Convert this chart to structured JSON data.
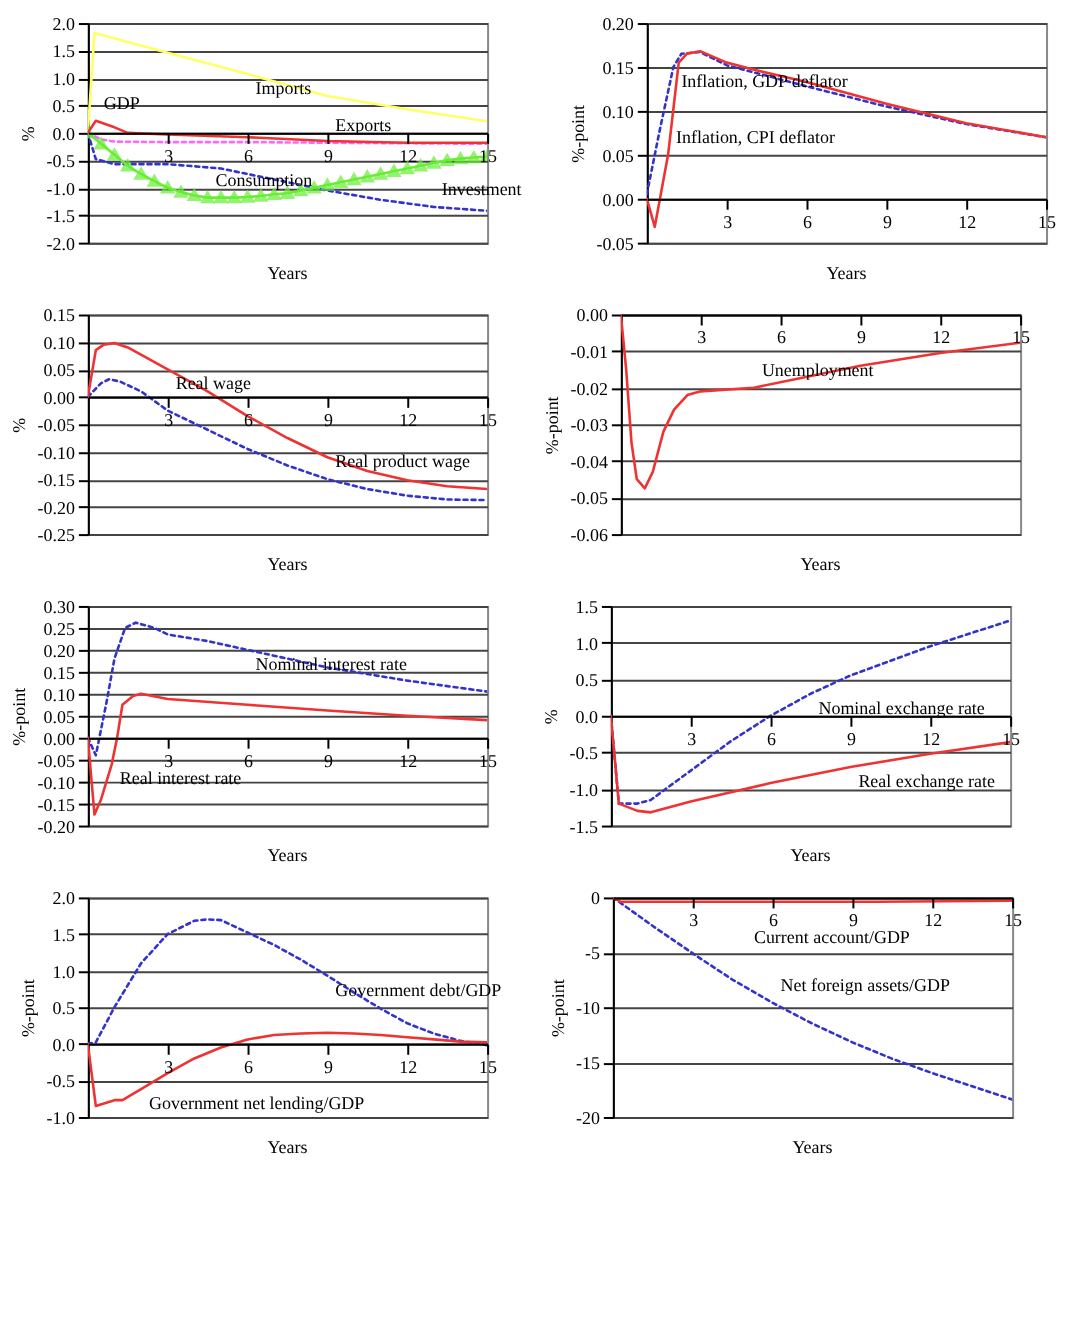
{
  "chart_data": [
    {
      "type": "line",
      "xlabel": "Years",
      "ylabel": "%",
      "xlim": [
        0,
        15
      ],
      "xticks": [
        3,
        6,
        9,
        12,
        15
      ],
      "ylim": [
        -2,
        2
      ],
      "grid": "y",
      "yticks": [
        {
          "value": -2,
          "label": "-2.0"
        },
        {
          "value": -1.5,
          "label": "-1.5"
        },
        {
          "value": -1,
          "label": "-1.0"
        },
        {
          "value": -0.5,
          "label": "-0.5"
        },
        {
          "value": 0,
          "label": "0.0"
        },
        {
          "value": 0.5,
          "label": "0.5"
        },
        {
          "value": 1,
          "label": "1.0"
        },
        {
          "value": 1.5,
          "label": "1.5"
        },
        {
          "value": 2,
          "label": "2.0"
        }
      ],
      "series": [
        {
          "color": "#ffff66",
          "line_style": "solid",
          "x": [
            0,
            0.25,
            3,
            6,
            9,
            12,
            15
          ],
          "values": [
            0,
            1.82,
            1.46,
            1.07,
            0.67,
            0.43,
            0.21
          ]
        },
        {
          "color": "#ff66ff",
          "line_style": "dotted",
          "x": [
            0,
            0.5,
            1,
            3,
            6,
            9,
            12,
            15
          ],
          "values": [
            0,
            -0.12,
            -0.16,
            -0.17,
            -0.17,
            -0.18,
            -0.19,
            -0.2
          ]
        },
        {
          "color": "#3333cc",
          "line_style": "dotted",
          "x": [
            0,
            0.3,
            1,
            3,
            5,
            7,
            9,
            11,
            13,
            15
          ],
          "values": [
            0,
            -0.48,
            -0.57,
            -0.57,
            -0.65,
            -0.85,
            -1.05,
            -1.22,
            -1.35,
            -1.42
          ]
        },
        {
          "color": "#66ee33",
          "line_style": "solid",
          "marker": "triangle",
          "x": [
            0,
            0.5,
            1,
            1.5,
            2,
            2.5,
            3,
            3.5,
            4,
            4.5,
            5,
            5.5,
            6,
            6.5,
            7,
            7.5,
            8,
            8.5,
            9,
            9.5,
            10,
            10.5,
            11,
            11.5,
            12,
            12.5,
            13,
            13.5,
            14,
            14.5,
            15
          ],
          "values": [
            0,
            -0.2,
            -0.4,
            -0.6,
            -0.75,
            -0.88,
            -1.0,
            -1.08,
            -1.14,
            -1.18,
            -1.18,
            -1.18,
            -1.17,
            -1.15,
            -1.12,
            -1.1,
            -1.05,
            -1.0,
            -0.95,
            -0.9,
            -0.85,
            -0.8,
            -0.75,
            -0.7,
            -0.65,
            -0.6,
            -0.55,
            -0.5,
            -0.47,
            -0.45,
            -0.43
          ]
        },
        {
          "color": "#ee3333",
          "line_style": "solid",
          "x": [
            0,
            0.3,
            1,
            1.5,
            3,
            6,
            9,
            12,
            15
          ],
          "values": [
            0,
            0.22,
            0.1,
            0,
            -0.03,
            -0.08,
            -0.15,
            -0.18,
            -0.18
          ]
        }
      ],
      "annotations": [
        {
          "text": "Imports",
          "x": 6,
          "y": 1.07
        },
        {
          "text": "GDP",
          "x": 0.3,
          "y": 0.22
        },
        {
          "text": "Exports",
          "x": 9,
          "y": -0.18
        },
        {
          "text": "Investment",
          "x": 13,
          "y": -1.35
        },
        {
          "text": "Consumption",
          "x": 4.5,
          "y": -1.18
        }
      ]
    },
    {
      "type": "line",
      "xlabel": "Years",
      "ylabel": "%-point",
      "xlim": [
        0,
        15
      ],
      "xticks": [
        3,
        6,
        9,
        12,
        15
      ],
      "ylim": [
        -0.05,
        0.2
      ],
      "grid": "y",
      "yticks": [
        -0.05,
        {
          "value": 0,
          "label": "0.00"
        },
        0.05,
        {
          "value": 0.1,
          "label": "0.10"
        },
        0.15,
        {
          "value": 0.2,
          "label": "0.20"
        }
      ],
      "series": [
        {
          "color": "#3333cc",
          "line_style": "dotted",
          "x": [
            0,
            0.5,
            1,
            1.3,
            2,
            3,
            6,
            9,
            12,
            15
          ],
          "values": [
            0.005,
            0.08,
            0.15,
            0.165,
            0.167,
            0.152,
            0.128,
            0.105,
            0.085,
            0.07
          ]
        },
        {
          "color": "#ee3333",
          "line_style": "solid",
          "x": [
            0,
            0.3,
            0.8,
            1.2,
            1.5,
            2,
            3,
            4,
            6,
            9,
            12,
            15
          ],
          "values": [
            0,
            -0.032,
            0.05,
            0.155,
            0.165,
            0.168,
            0.155,
            0.147,
            0.133,
            0.108,
            0.086,
            0.07
          ]
        }
      ],
      "annotations": [
        {
          "text": "Inflation, GDP deflator",
          "x": 1,
          "y": 0.15
        },
        {
          "text": "Inflation, CPI deflator",
          "x": 0.8,
          "y": 0.05
        }
      ]
    },
    {
      "type": "line",
      "xlabel": "Years",
      "ylabel": "%",
      "xlim": [
        0,
        15
      ],
      "xticks": [
        3,
        6,
        9,
        12,
        15
      ],
      "ylim": [
        -0.25,
        0.15
      ],
      "grid": "y",
      "yticks": [
        -0.25,
        {
          "value": -0.2,
          "label": "-0.20"
        },
        -0.15,
        {
          "value": -0.1,
          "label": "-0.10"
        },
        -0.05,
        {
          "value": 0,
          "label": "0.00"
        },
        0.05,
        {
          "value": 0.1,
          "label": "0.10"
        },
        0.15
      ],
      "series": [
        {
          "color": "#3333cc",
          "line_style": "dotted",
          "x": [
            0,
            0.5,
            0.8,
            1.2,
            2,
            3,
            4.5,
            6,
            7.5,
            9,
            10.5,
            12,
            13.5,
            15
          ],
          "values": [
            0,
            0.025,
            0.032,
            0.028,
            0.01,
            -0.025,
            -0.06,
            -0.095,
            -0.125,
            -0.15,
            -0.168,
            -0.18,
            -0.187,
            -0.188
          ]
        },
        {
          "color": "#ee3333",
          "line_style": "solid",
          "x": [
            0,
            0.3,
            0.6,
            1,
            1.5,
            3,
            4.5,
            6,
            7.5,
            9,
            10.5,
            12,
            13.5,
            15
          ],
          "values": [
            0,
            0.085,
            0.095,
            0.098,
            0.09,
            0.05,
            0.01,
            -0.035,
            -0.075,
            -0.11,
            -0.135,
            -0.152,
            -0.163,
            -0.168
          ]
        }
      ],
      "annotations": [
        {
          "text": "Real wage",
          "x": 3,
          "y": 0.05
        },
        {
          "text": "Real product wage",
          "x": 9,
          "y": -0.15
        }
      ]
    },
    {
      "type": "line",
      "xlabel": "Years",
      "ylabel": "%-point",
      "xlim": [
        0,
        15
      ],
      "xticks": [
        3,
        6,
        9,
        12,
        15
      ],
      "ylim": [
        -0.06,
        0
      ],
      "grid": "y",
      "yticks": [
        {
          "value": -0.06,
          "label": "-0.06"
        },
        {
          "value": -0.05,
          "label": "-0.05"
        },
        {
          "value": -0.04,
          "label": "-0.04"
        },
        {
          "value": -0.03,
          "label": "-0.03"
        },
        {
          "value": -0.02,
          "label": "-0.02"
        },
        {
          "value": -0.01,
          "label": "-0.01"
        },
        {
          "value": 0,
          "label": "0.00"
        }
      ],
      "series": [
        {
          "color": "#ee3333",
          "line_style": "solid",
          "x": [
            0,
            0.2,
            0.4,
            0.6,
            0.9,
            1.2,
            1.6,
            2,
            2.5,
            3,
            5,
            7,
            9,
            12,
            15
          ],
          "values": [
            0,
            -0.015,
            -0.035,
            -0.045,
            -0.0475,
            -0.043,
            -0.032,
            -0.026,
            -0.022,
            -0.021,
            -0.02,
            -0.017,
            -0.014,
            -0.0105,
            -0.0077
          ]
        }
      ],
      "annotations": [
        {
          "text": "Unemployment",
          "x": 5,
          "y": -0.02
        }
      ]
    },
    {
      "type": "line",
      "xlabel": "Years",
      "ylabel": "%-point",
      "xlim": [
        0,
        15
      ],
      "xticks": [
        3,
        6,
        9,
        12,
        15
      ],
      "ylim": [
        -0.2,
        0.3
      ],
      "grid": "y",
      "yticks": [
        {
          "value": -0.2,
          "label": "-0.20"
        },
        -0.15,
        {
          "value": -0.1,
          "label": "-0.10"
        },
        -0.05,
        {
          "value": 0,
          "label": "0.00"
        },
        0.05,
        {
          "value": 0.1,
          "label": "0.10"
        },
        0.15,
        {
          "value": 0.2,
          "label": "0.20"
        },
        0.25,
        {
          "value": 0.3,
          "label": "0.30"
        }
      ],
      "series": [
        {
          "color": "#3333cc",
          "line_style": "dotted",
          "x": [
            0,
            0.3,
            0.7,
            1,
            1.4,
            1.8,
            2.5,
            3,
            4.5,
            6,
            9,
            12,
            15
          ],
          "values": [
            0,
            -0.04,
            0.08,
            0.18,
            0.25,
            0.262,
            0.25,
            0.235,
            0.22,
            0.2,
            0.16,
            0.13,
            0.105
          ]
        },
        {
          "color": "#ee3333",
          "line_style": "solid",
          "x": [
            0,
            0.25,
            0.5,
            0.9,
            1.1,
            1.3,
            1.7,
            2,
            3,
            6,
            9,
            12,
            15
          ],
          "values": [
            0,
            -0.175,
            -0.14,
            -0.06,
            0,
            0.075,
            0.095,
            0.1,
            0.088,
            0.075,
            0.062,
            0.05,
            0.04
          ]
        }
      ],
      "annotations": [
        {
          "text": "Nominal interest rate",
          "x": 6,
          "y": 0.2
        },
        {
          "text": "Real interest rate",
          "x": 0.9,
          "y": -0.06
        }
      ]
    },
    {
      "type": "line",
      "xlabel": "Years",
      "ylabel": "%",
      "xlim": [
        0,
        15
      ],
      "xticks": [
        3,
        6,
        9,
        12,
        15
      ],
      "ylim": [
        -1.5,
        1.5
      ],
      "grid": "y",
      "yticks": [
        {
          "value": -1.5,
          "label": "-1.5"
        },
        {
          "value": -1,
          "label": "-1.0"
        },
        {
          "value": -0.5,
          "label": "-0.5"
        },
        {
          "value": 0,
          "label": "0.0"
        },
        {
          "value": 0.5,
          "label": "0.5"
        },
        {
          "value": 1,
          "label": "1.0"
        },
        {
          "value": 1.5,
          "label": "1.5"
        }
      ],
      "series": [
        {
          "color": "#3333cc",
          "line_style": "dotted",
          "x": [
            0,
            0.3,
            1,
            1.5,
            3,
            4.5,
            6,
            7.5,
            9,
            12,
            15
          ],
          "values": [
            0,
            -1.2,
            -1.2,
            -1.15,
            -0.75,
            -0.35,
            0,
            0.3,
            0.55,
            0.95,
            1.3
          ]
        },
        {
          "color": "#ee3333",
          "line_style": "solid",
          "x": [
            0,
            0.3,
            1,
            1.5,
            3,
            6,
            9,
            12,
            15
          ],
          "values": [
            0,
            -1.2,
            -1.3,
            -1.32,
            -1.17,
            -0.92,
            -0.7,
            -0.52,
            -0.36
          ]
        }
      ],
      "annotations": [
        {
          "text": "Nominal exchange rate",
          "x": 7.5,
          "y": 0.3
        },
        {
          "text": "Real exchange rate",
          "x": 9,
          "y": -0.7
        }
      ]
    },
    {
      "type": "line",
      "xlabel": "Years",
      "ylabel": "%-point",
      "xlim": [
        0,
        15
      ],
      "xticks": [
        3,
        6,
        9,
        12,
        15
      ],
      "ylim": [
        -1,
        2
      ],
      "grid": "y",
      "yticks": [
        {
          "value": -1,
          "label": "-1.0"
        },
        {
          "value": -0.5,
          "label": "-0.5"
        },
        {
          "value": 0,
          "label": "0.0"
        },
        {
          "value": 0.5,
          "label": "0.5"
        },
        {
          "value": 1,
          "label": "1.0"
        },
        {
          "value": 1.5,
          "label": "1.5"
        },
        {
          "value": 2,
          "label": "2.0"
        }
      ],
      "series": [
        {
          "color": "#3333cc",
          "line_style": "dotted",
          "x": [
            0,
            0.3,
            1,
            2,
            3,
            4,
            4.5,
            5,
            6,
            7,
            8,
            9,
            10,
            11,
            12,
            13,
            14,
            15
          ],
          "values": [
            0,
            0.02,
            0.5,
            1.1,
            1.5,
            1.68,
            1.7,
            1.69,
            1.52,
            1.35,
            1.15,
            0.93,
            0.7,
            0.48,
            0.28,
            0.14,
            0.04,
            -0.02
          ]
        },
        {
          "color": "#ee3333",
          "line_style": "solid",
          "x": [
            0,
            0.3,
            1,
            1.3,
            2,
            3,
            4,
            5,
            6,
            7,
            8,
            9,
            10,
            11,
            12,
            13,
            14,
            15
          ],
          "values": [
            0,
            -0.85,
            -0.77,
            -0.77,
            -0.62,
            -0.4,
            -0.2,
            -0.05,
            0.06,
            0.12,
            0.14,
            0.15,
            0.14,
            0.12,
            0.09,
            0.06,
            0.03,
            0.02
          ]
        }
      ],
      "annotations": [
        {
          "text": "Government debt/GDP",
          "x": 9,
          "y": 0.93
        },
        {
          "text": "Government net lending/GDP",
          "x": 2,
          "y": -0.62
        }
      ]
    },
    {
      "type": "line",
      "xlabel": "Years",
      "ylabel": "%-point",
      "xlim": [
        0,
        15
      ],
      "xticks": [
        3,
        6,
        9,
        12,
        15
      ],
      "ylim": [
        -20,
        0
      ],
      "grid": "y",
      "yticks": [
        -20,
        -15,
        -10,
        -5,
        0
      ],
      "series": [
        {
          "color": "#3333cc",
          "line_style": "dotted",
          "x": [
            0,
            1.5,
            3,
            4.5,
            6,
            7.5,
            9,
            10.5,
            12,
            13.5,
            15
          ],
          "values": [
            0,
            -2.6,
            -5.1,
            -7.5,
            -9.6,
            -11.5,
            -13.2,
            -14.7,
            -16,
            -17.2,
            -18.4
          ]
        },
        {
          "color": "#ee3333",
          "line_style": "solid",
          "x": [
            0,
            0.3,
            5,
            10,
            15
          ],
          "values": [
            0,
            -0.4,
            -0.4,
            -0.4,
            -0.3
          ]
        }
      ],
      "annotations": [
        {
          "text": "Current account/GDP",
          "x": 5,
          "y": -0.4
        },
        {
          "text": "Net foreign assets/GDP",
          "x": 6,
          "y": -9.6
        }
      ]
    }
  ]
}
